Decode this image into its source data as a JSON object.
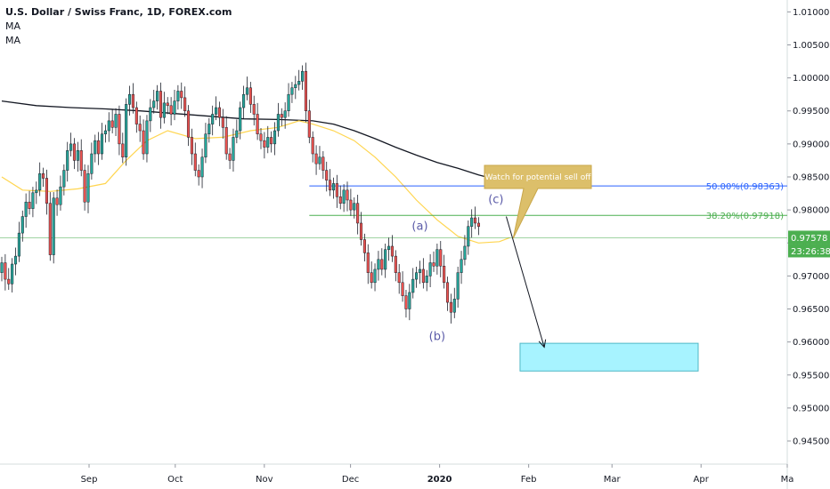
{
  "chart_data": {
    "type": "candlestick",
    "title": "U.S. Dollar / Swiss Franc, 1D, FOREX.com",
    "indicators": [
      "MA",
      "MA"
    ],
    "y_axis": {
      "ticks": [
        "1.01000",
        "1.00500",
        "1.00000",
        "0.99500",
        "0.99000",
        "0.98500",
        "0.98000",
        "0.97500",
        "0.97000",
        "0.96500",
        "0.96000",
        "0.95500",
        "0.95000",
        "0.94500"
      ],
      "ylim": [
        0.9415,
        1.0118
      ]
    },
    "x_axis": {
      "ticks": [
        {
          "label": "Sep",
          "bold": false
        },
        {
          "label": "Oct",
          "bold": false
        },
        {
          "label": "Nov",
          "bold": false
        },
        {
          "label": "Dec",
          "bold": false
        },
        {
          "label": "2020",
          "bold": true
        },
        {
          "label": "Feb",
          "bold": false
        },
        {
          "label": "Mar",
          "bold": false
        },
        {
          "label": "Apr",
          "bold": false
        },
        {
          "label": "Ma",
          "bold": false
        }
      ],
      "range": [
        "2019-08-01",
        "2020-05-01"
      ]
    },
    "current_price": {
      "label": "0.97578",
      "value": 0.97578,
      "countdown": "23:26:38"
    },
    "closes": [
      0.972,
      0.9695,
      0.9688,
      0.9718,
      0.973,
      0.9765,
      0.979,
      0.9812,
      0.9802,
      0.9826,
      0.983,
      0.9855,
      0.9848,
      0.981,
      0.9732,
      0.9818,
      0.9808,
      0.9835,
      0.986,
      0.989,
      0.99,
      0.9875,
      0.989,
      0.986,
      0.9812,
      0.9855,
      0.9885,
      0.9905,
      0.9885,
      0.9915,
      0.992,
      0.9935,
      0.9925,
      0.9945,
      0.99,
      0.988,
      0.996,
      0.9975,
      0.9955,
      0.993,
      0.992,
      0.9885,
      0.9935,
      0.9955,
      0.9965,
      0.998,
      0.994,
      0.9962,
      0.9958,
      0.9945,
      0.9965,
      0.998,
      0.997,
      0.995,
      0.991,
      0.9885,
      0.986,
      0.985,
      0.988,
      0.9915,
      0.993,
      0.9945,
      0.9955,
      0.994,
      0.9925,
      0.9885,
      0.9875,
      0.991,
      0.992,
      0.9955,
      0.9975,
      0.9985,
      0.996,
      0.9945,
      0.9915,
      0.9905,
      0.9895,
      0.991,
      0.99,
      0.992,
      0.9945,
      0.994,
      0.995,
      0.9975,
      0.9985,
      0.999,
      0.9995,
      1.001,
      0.995,
      0.991,
      0.9885,
      0.987,
      0.988,
      0.986,
      0.9845,
      0.983,
      0.984,
      0.982,
      0.981,
      0.983,
      0.9815,
      0.98,
      0.981,
      0.978,
      0.9755,
      0.9735,
      0.9705,
      0.969,
      0.971,
      0.9725,
      0.971,
      0.974,
      0.9745,
      0.973,
      0.9705,
      0.969,
      0.967,
      0.965,
      0.9675,
      0.9695,
      0.9705,
      0.971,
      0.969,
      0.97,
      0.972,
      0.9715,
      0.974,
      0.9715,
      0.969,
      0.966,
      0.9645,
      0.9665,
      0.9705,
      0.9725,
      0.9745,
      0.9775,
      0.9788,
      0.978,
      0.9775
    ],
    "ma_fast": [
      {
        "x": 0,
        "y": 0.985
      },
      {
        "x": 6,
        "y": 0.983
      },
      {
        "x": 14,
        "y": 0.9828
      },
      {
        "x": 22,
        "y": 0.9832
      },
      {
        "x": 30,
        "y": 0.984
      },
      {
        "x": 36,
        "y": 0.9875
      },
      {
        "x": 42,
        "y": 0.9905
      },
      {
        "x": 48,
        "y": 0.992
      },
      {
        "x": 56,
        "y": 0.9908
      },
      {
        "x": 64,
        "y": 0.991
      },
      {
        "x": 72,
        "y": 0.992
      },
      {
        "x": 80,
        "y": 0.9925
      },
      {
        "x": 86,
        "y": 0.9935
      },
      {
        "x": 90,
        "y": 0.993
      },
      {
        "x": 96,
        "y": 0.992
      },
      {
        "x": 102,
        "y": 0.9905
      },
      {
        "x": 108,
        "y": 0.988
      },
      {
        "x": 114,
        "y": 0.985
      },
      {
        "x": 120,
        "y": 0.9815
      },
      {
        "x": 126,
        "y": 0.9785
      },
      {
        "x": 132,
        "y": 0.976
      },
      {
        "x": 138,
        "y": 0.975
      },
      {
        "x": 144,
        "y": 0.9752
      },
      {
        "x": 147,
        "y": 0.9758
      }
    ],
    "ma_slow": [
      {
        "x": 0,
        "y": 0.9965
      },
      {
        "x": 10,
        "y": 0.9958
      },
      {
        "x": 20,
        "y": 0.9955
      },
      {
        "x": 30,
        "y": 0.9953
      },
      {
        "x": 40,
        "y": 0.995
      },
      {
        "x": 50,
        "y": 0.9946
      },
      {
        "x": 60,
        "y": 0.9942
      },
      {
        "x": 70,
        "y": 0.9938
      },
      {
        "x": 80,
        "y": 0.9937
      },
      {
        "x": 90,
        "y": 0.9935
      },
      {
        "x": 96,
        "y": 0.993
      },
      {
        "x": 102,
        "y": 0.992
      },
      {
        "x": 108,
        "y": 0.9908
      },
      {
        "x": 114,
        "y": 0.9895
      },
      {
        "x": 120,
        "y": 0.9883
      },
      {
        "x": 126,
        "y": 0.9872
      },
      {
        "x": 132,
        "y": 0.9863
      },
      {
        "x": 138,
        "y": 0.9853
      },
      {
        "x": 144,
        "y": 0.9845
      },
      {
        "x": 147,
        "y": 0.9841
      }
    ],
    "fib_levels": [
      {
        "label": "50.00%(0.98363)",
        "value": 0.98363,
        "color": "#2962ff",
        "from_bar": 89
      },
      {
        "label": "38.20%(0.97918)",
        "value": 0.97918,
        "color": "#4caf50",
        "from_bar": 89
      }
    ],
    "wave_labels": [
      {
        "text": "(a)",
        "x": 121,
        "y": 0.977
      },
      {
        "text": "(b)",
        "x": 126,
        "y": 0.9603
      },
      {
        "text": "(c)",
        "x": 143,
        "y": 0.981
      }
    ],
    "callout": {
      "text": "Watch for potential sell off",
      "anchor_x": 148,
      "anchor_y": 0.9757
    },
    "target_zone": {
      "x_from": "2020-01-29",
      "x_to": "2020-03-31",
      "y_from": 0.9556,
      "y_to": 0.9598
    },
    "arrow": {
      "x_from": 146,
      "y_from": 0.979,
      "x_to": 157,
      "y_to": 0.9592
    },
    "colors": {
      "up": "#26a69a",
      "down": "#ef5350",
      "ma_fast": "#ffd54f",
      "ma_slow": "#131722",
      "price_line": "#4caf50",
      "zone_fill": "#a7f3ff",
      "zone_stroke": "#4fb7c5",
      "callout_fill": "#dcbf6a",
      "axis_text": "#131722",
      "wave_text": "#5b5ba8"
    }
  }
}
